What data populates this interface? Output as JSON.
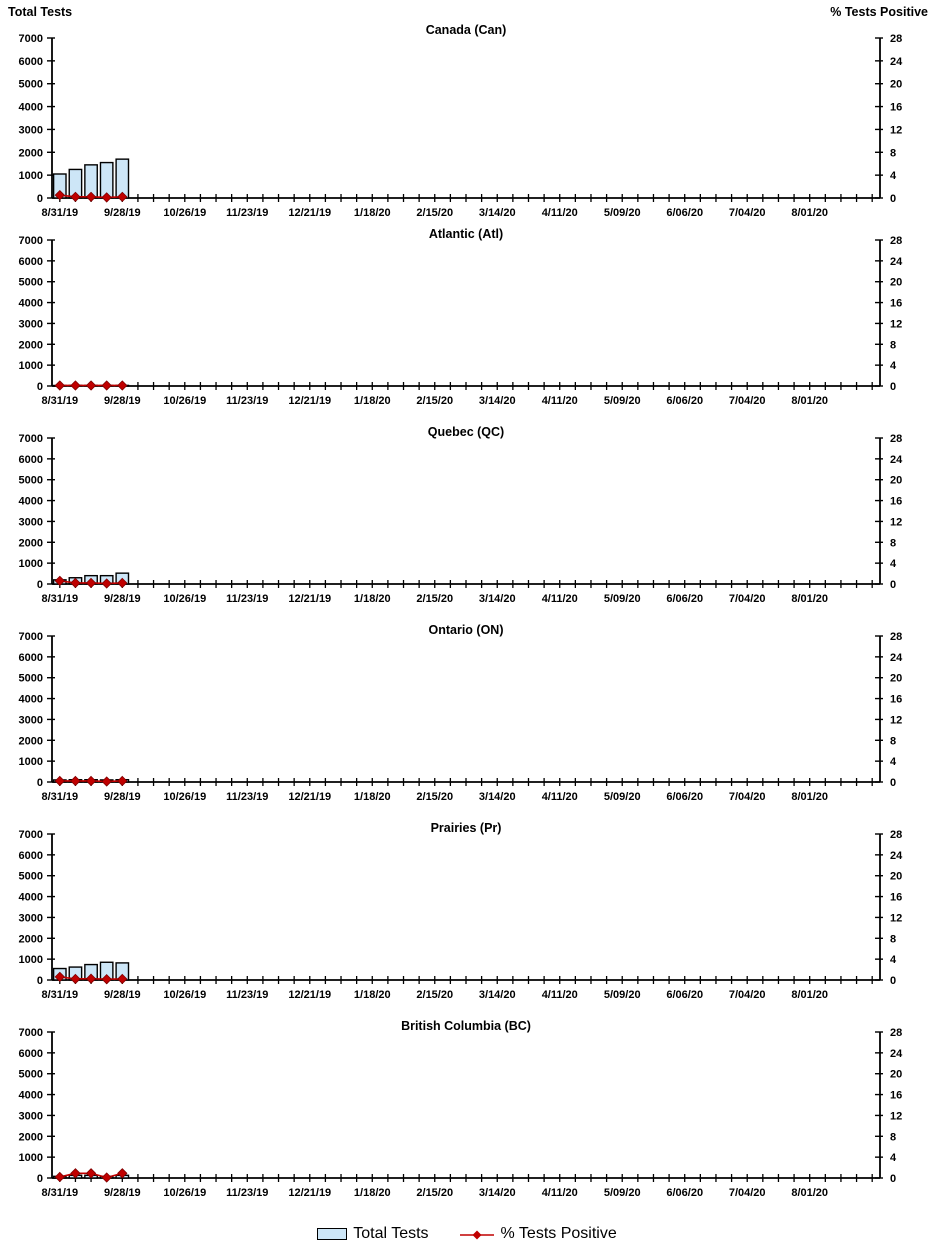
{
  "legend": {
    "bar_label": "Total Tests",
    "line_label": "% Tests Positive"
  },
  "colors": {
    "bar_fill": "#cde6f7",
    "bar_stroke": "#000000",
    "line_color": "#c00000",
    "text_color": "#000000"
  },
  "chart_data": {
    "type": "bar+line",
    "shared_axes": {
      "left_title": "Total Tests",
      "right_title": "% Tests Positive",
      "left_ticks": [
        0,
        1000,
        2000,
        3000,
        4000,
        5000,
        6000,
        7000
      ],
      "left_max": 7000,
      "right_ticks": [
        0,
        4,
        8,
        12,
        16,
        20,
        24,
        28
      ],
      "right_max": 28,
      "weeks_total": 53,
      "x_label_every": 4,
      "x_labels": [
        "8/31/19",
        "9/28/19",
        "10/26/19",
        "11/23/19",
        "12/21/19",
        "1/18/20",
        "2/15/20",
        "3/14/20",
        "4/11/20",
        "5/09/20",
        "6/06/20",
        "7/04/20",
        "8/01/20"
      ],
      "grid": false,
      "legend_position": "bottom"
    },
    "charts": [
      {
        "title": "Canada (Can)",
        "weeks": [
          "8/31/19",
          "9/07/19",
          "9/14/19",
          "9/21/19",
          "9/28/19"
        ],
        "total_tests": [
          1050,
          1250,
          1450,
          1550,
          1700
        ],
        "pct_positive": [
          0.5,
          0.2,
          0.2,
          0.1,
          0.2
        ]
      },
      {
        "title": "Atlantic (Atl)",
        "weeks": [
          "8/31/19",
          "9/07/19",
          "9/14/19",
          "9/21/19",
          "9/28/19"
        ],
        "total_tests": [
          25,
          30,
          30,
          25,
          30
        ],
        "pct_positive": [
          0.1,
          0.1,
          0.1,
          0.1,
          0.1
        ]
      },
      {
        "title": "Quebec (QC)",
        "weeks": [
          "8/31/19",
          "9/07/19",
          "9/14/19",
          "9/21/19",
          "9/28/19"
        ],
        "total_tests": [
          200,
          300,
          400,
          400,
          520
        ],
        "pct_positive": [
          0.6,
          0.2,
          0.2,
          0.1,
          0.2
        ]
      },
      {
        "title": "Ontario (ON)",
        "weeks": [
          "8/31/19",
          "9/07/19",
          "9/14/19",
          "9/21/19",
          "9/28/19"
        ],
        "total_tests": [
          100,
          110,
          110,
          100,
          110
        ],
        "pct_positive": [
          0.2,
          0.2,
          0.2,
          0.1,
          0.2
        ]
      },
      {
        "title": "Prairies (Pr)",
        "weeks": [
          "8/31/19",
          "9/07/19",
          "9/14/19",
          "9/21/19",
          "9/28/19"
        ],
        "total_tests": [
          550,
          620,
          740,
          850,
          820
        ],
        "pct_positive": [
          0.6,
          0.2,
          0.25,
          0.15,
          0.2
        ]
      },
      {
        "title": "British Columbia (BC)",
        "weeks": [
          "8/31/19",
          "9/07/19",
          "9/14/19",
          "9/21/19",
          "9/28/19"
        ],
        "total_tests": [
          80,
          130,
          130,
          80,
          130
        ],
        "pct_positive": [
          0.2,
          0.9,
          0.9,
          0.1,
          0.9
        ]
      }
    ]
  }
}
